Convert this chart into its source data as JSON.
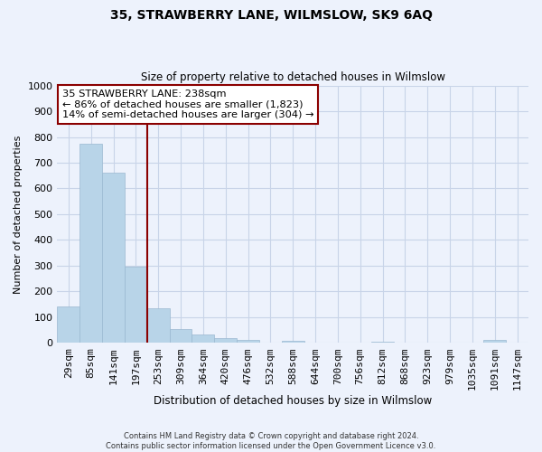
{
  "title": "35, STRAWBERRY LANE, WILMSLOW, SK9 6AQ",
  "subtitle": "Size of property relative to detached houses in Wilmslow",
  "xlabel": "Distribution of detached houses by size in Wilmslow",
  "ylabel": "Number of detached properties",
  "bin_labels": [
    "29sqm",
    "85sqm",
    "141sqm",
    "197sqm",
    "253sqm",
    "309sqm",
    "364sqm",
    "420sqm",
    "476sqm",
    "532sqm",
    "588sqm",
    "644sqm",
    "700sqm",
    "756sqm",
    "812sqm",
    "868sqm",
    "923sqm",
    "979sqm",
    "1035sqm",
    "1091sqm",
    "1147sqm"
  ],
  "bar_values": [
    140,
    775,
    660,
    295,
    135,
    55,
    32,
    18,
    10,
    0,
    8,
    0,
    0,
    0,
    5,
    0,
    0,
    0,
    0,
    10,
    0
  ],
  "bar_color": "#b8d4e8",
  "bar_edge_color": "#9ab8d0",
  "vline_x_bin": 4,
  "vline_color": "#8b0000",
  "annotation_title": "35 STRAWBERRY LANE: 238sqm",
  "annotation_line1": "← 86% of detached houses are smaller (1,823)",
  "annotation_line2": "14% of semi-detached houses are larger (304) →",
  "annotation_box_facecolor": "#ffffff",
  "annotation_box_edgecolor": "#8b0000",
  "ylim": [
    0,
    1000
  ],
  "yticks": [
    0,
    100,
    200,
    300,
    400,
    500,
    600,
    700,
    800,
    900,
    1000
  ],
  "footer_line1": "Contains HM Land Registry data © Crown copyright and database right 2024.",
  "footer_line2": "Contains public sector information licensed under the Open Government Licence v3.0.",
  "grid_color": "#c8d4e8",
  "background_color": "#edf2fc"
}
